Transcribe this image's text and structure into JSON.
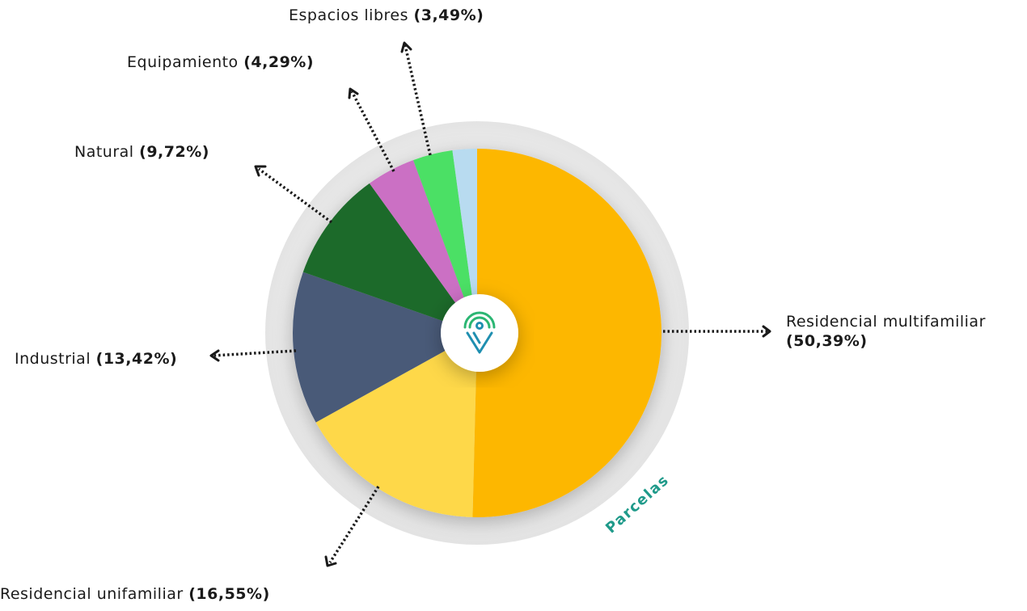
{
  "chart_data": {
    "type": "pie",
    "categories": [
      "Residencial multifamiliar",
      "Residencial unifamiliar",
      "Industrial",
      "Natural",
      "Equipamiento",
      "Espacios libres",
      null
    ],
    "values": [
      50.39,
      16.55,
      13.42,
      9.72,
      4.29,
      3.49,
      2.14
    ],
    "value_labels": [
      "(50,39%)",
      "(16,55%)",
      "(13,42%)",
      "(9,72%)",
      "(4,29%)",
      "(3,49%)",
      null
    ],
    "colors": [
      "#FDB700",
      "#FED849",
      "#4A5A78",
      "#1D6A2B",
      "#CB70C4",
      "#4BE065",
      "#B8DBF0"
    ],
    "ring_label": "Parcelas"
  }
}
